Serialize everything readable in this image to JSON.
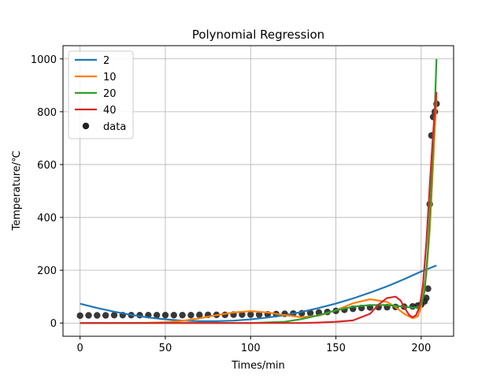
{
  "chart_data": {
    "type": "scatter",
    "title": "Polynomial Regression",
    "xlabel": "Times/min",
    "ylabel": "Temperature/℃",
    "xlim": [
      -10,
      219
    ],
    "ylim": [
      -50,
      1050
    ],
    "xticks": [
      0,
      50,
      100,
      150,
      200
    ],
    "yticks": [
      0,
      200,
      400,
      600,
      800,
      1000
    ],
    "grid": true,
    "legend_position": "top-left",
    "series": [
      {
        "name": "2",
        "kind": "line",
        "color": "#1f77b4",
        "x": [
          0,
          10,
          20,
          30,
          40,
          50,
          60,
          70,
          80,
          90,
          100,
          110,
          120,
          130,
          140,
          150,
          160,
          170,
          180,
          190,
          200,
          209
        ],
        "y": [
          73,
          57,
          43,
          31,
          21,
          14,
          9,
          7,
          7,
          9,
          14,
          21,
          30,
          42,
          57,
          74,
          93,
          115,
          139,
          166,
          195,
          218
        ]
      },
      {
        "name": "10",
        "kind": "line",
        "color": "#ff7f0e",
        "x": [
          0,
          20,
          40,
          50,
          60,
          70,
          80,
          90,
          100,
          110,
          120,
          130,
          140,
          150,
          160,
          170,
          180,
          185,
          190,
          195,
          198,
          200,
          203,
          205,
          207,
          209
        ],
        "y": [
          0,
          0,
          1,
          3,
          8,
          18,
          30,
          40,
          45,
          40,
          30,
          22,
          28,
          48,
          75,
          90,
          80,
          60,
          35,
          18,
          25,
          60,
          180,
          350,
          600,
          860
        ]
      },
      {
        "name": "20",
        "kind": "line",
        "color": "#2ca02c",
        "x": [
          0,
          50,
          100,
          120,
          130,
          140,
          150,
          160,
          170,
          180,
          190,
          195,
          198,
          200,
          202,
          204,
          206,
          208,
          209
        ],
        "y": [
          0,
          0,
          0,
          5,
          15,
          30,
          48,
          62,
          68,
          68,
          62,
          58,
          60,
          70,
          120,
          280,
          520,
          820,
          1000
        ]
      },
      {
        "name": "40",
        "kind": "line",
        "color": "#d62728",
        "x": [
          0,
          50,
          100,
          130,
          140,
          150,
          160,
          170,
          175,
          180,
          185,
          188,
          190,
          193,
          195,
          197,
          199,
          201,
          203,
          205,
          207,
          209
        ],
        "y": [
          0,
          0,
          0,
          0,
          2,
          5,
          10,
          35,
          70,
          95,
          100,
          85,
          60,
          30,
          22,
          30,
          60,
          140,
          300,
          520,
          720,
          875
        ]
      },
      {
        "name": "data",
        "kind": "scatter",
        "color": "#222222",
        "x": [
          0,
          5,
          10,
          15,
          20,
          25,
          30,
          35,
          40,
          45,
          50,
          55,
          60,
          65,
          70,
          75,
          80,
          85,
          90,
          95,
          100,
          105,
          110,
          115,
          120,
          125,
          130,
          135,
          140,
          145,
          150,
          155,
          160,
          165,
          170,
          175,
          180,
          185,
          190,
          195,
          198,
          200,
          202,
          203,
          204,
          205,
          206,
          207,
          208,
          209
        ],
        "y": [
          28,
          29,
          29,
          29,
          30,
          30,
          30,
          30,
          30,
          30,
          30,
          30,
          30,
          30,
          31,
          31,
          31,
          31,
          32,
          32,
          32,
          32,
          33,
          34,
          35,
          36,
          37,
          38,
          40,
          42,
          46,
          50,
          54,
          57,
          59,
          60,
          60,
          61,
          62,
          63,
          66,
          70,
          82,
          95,
          130,
          450,
          710,
          780,
          800,
          830
        ]
      }
    ]
  }
}
